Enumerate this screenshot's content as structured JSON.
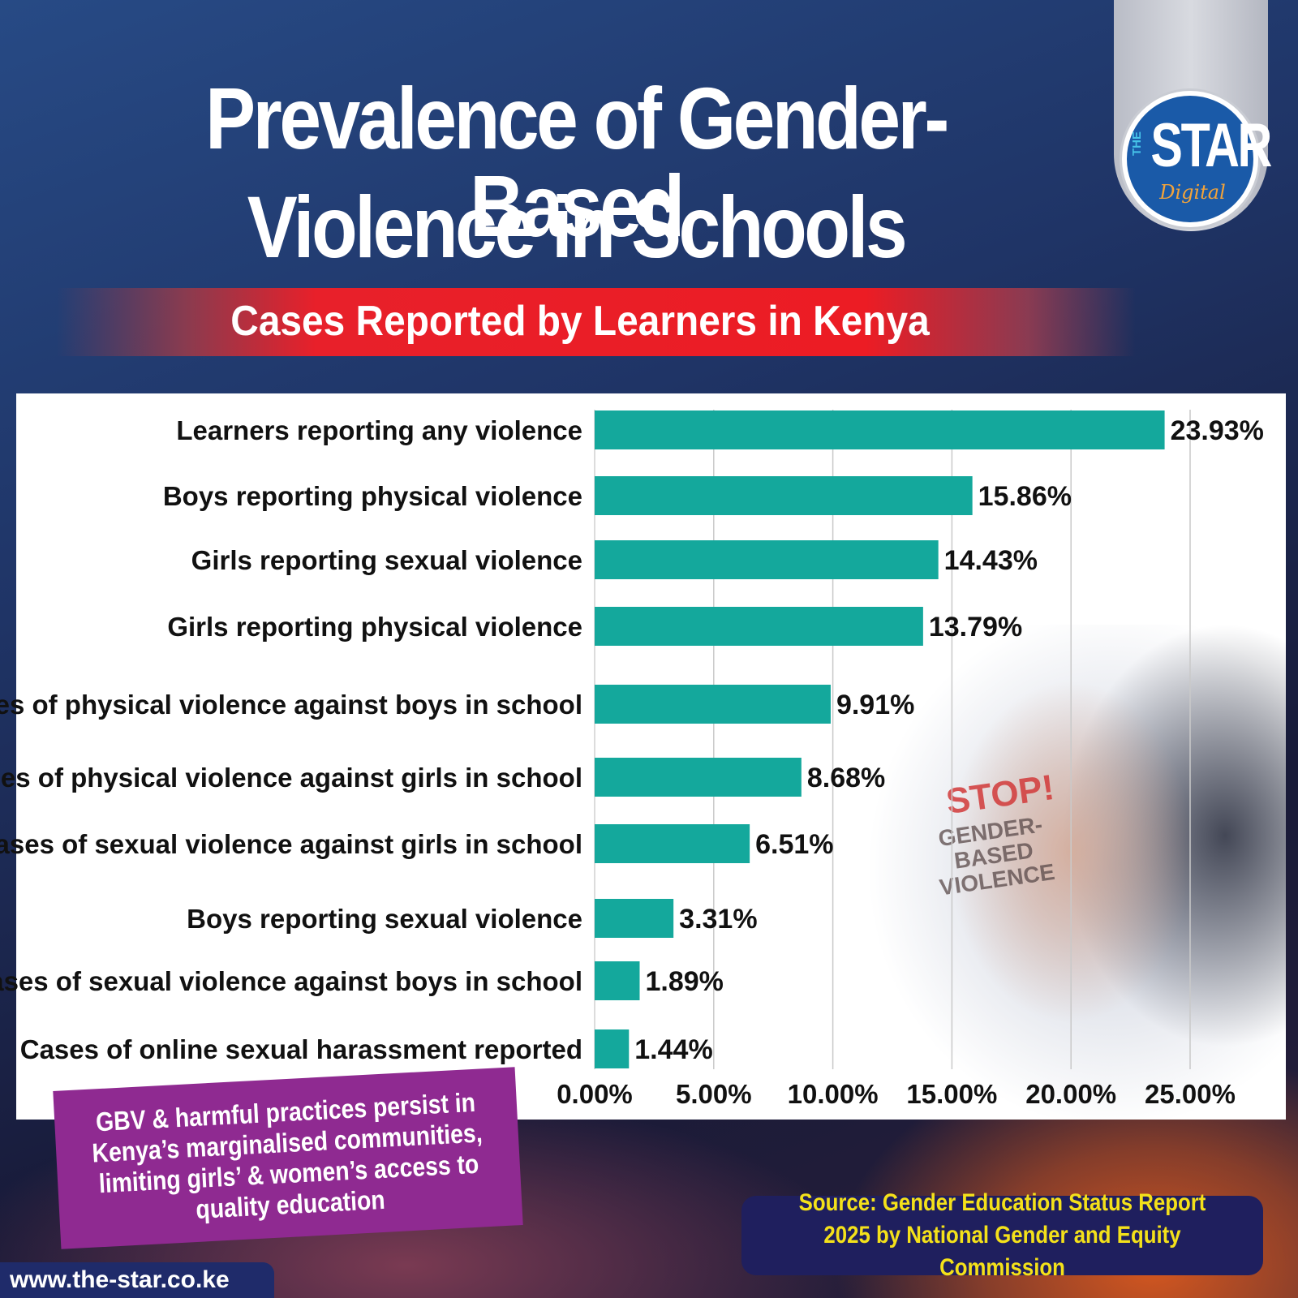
{
  "header": {
    "title_line1": "Prevalence of Gender-Based",
    "title_line2": "Violence in Schools",
    "subtitle": "Cases Reported by Learners in Kenya"
  },
  "logo": {
    "the": "THE",
    "star": "STAR",
    "digital": "Digital",
    "color": "#1a5aa8"
  },
  "image_text": {
    "stop": "STOP!",
    "gbv": "GENDER- BASED VIOLENCE"
  },
  "chart_data": {
    "type": "bar",
    "orientation": "horizontal",
    "categories": [
      "Learners reporting any violence",
      "Boys reporting physical violence",
      "Girls reporting sexual violence",
      "Girls reporting physical violence",
      "Cases of physical violence against boys in school",
      "Cases of physical violence against girls in school",
      "Cases of sexual violence against girls in school",
      "Boys reporting sexual violence",
      "Cases of sexual violence against boys in school",
      "Cases of online sexual harassment reported"
    ],
    "values": [
      23.93,
      15.86,
      14.43,
      13.79,
      9.91,
      8.68,
      6.51,
      3.31,
      1.89,
      1.44
    ],
    "value_labels": [
      "23.93%",
      "15.86%",
      "14.43%",
      "13.79%",
      "9.91%",
      "8.68%",
      "6.51%",
      "3.31%",
      "1.89%",
      "1.44%"
    ],
    "ticks": [
      0,
      5,
      10,
      15,
      20,
      25
    ],
    "tick_labels": [
      "0.00%",
      "5.00%",
      "10.00%",
      "15.00%",
      "20.00%",
      "25.00%"
    ],
    "xlim": [
      0,
      25
    ],
    "grid": true,
    "bar_color": "#14a89c"
  },
  "note": "GBV & harmful practices persist in Kenya’s marginalised communities, limiting girls’ & women’s access to quality education",
  "source": "Source: Gender Education Status Report 2025 by National Gender and Equity Commission",
  "website": "www.the-star.co.ke"
}
